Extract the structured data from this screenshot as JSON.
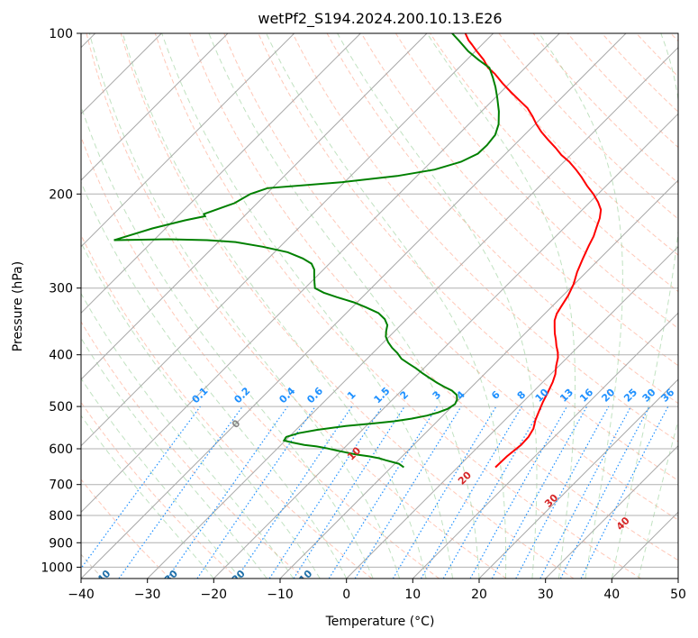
{
  "chart_data": {
    "type": "line",
    "title": "wetPf2_S194.2024.200.10.13.E26",
    "xlabel": "Temperature (°C)",
    "ylabel": "Pressure (hPa)",
    "xlim": [
      -40,
      50
    ],
    "ylim": [
      1050,
      100
    ],
    "y_scale": "log",
    "x_ticks": [
      -40,
      -30,
      -20,
      -10,
      0,
      10,
      20,
      30,
      40,
      50
    ],
    "y_ticks": [
      100,
      200,
      300,
      400,
      500,
      600,
      700,
      800,
      900,
      1000
    ],
    "grid": true,
    "skew": 45,
    "series": [
      {
        "role": "temperature",
        "color": "#ff0000",
        "points": [
          [
            5.7,
            650
          ],
          [
            5.8,
            620
          ],
          [
            6.2,
            590
          ],
          [
            6.1,
            570
          ],
          [
            5.6,
            550
          ],
          [
            4.6,
            530
          ],
          [
            3.8,
            510
          ],
          [
            3.0,
            490
          ],
          [
            2.3,
            470
          ],
          [
            1.5,
            450
          ],
          [
            0.7,
            435
          ],
          [
            -0.4,
            420
          ],
          [
            -1.4,
            405
          ],
          [
            -2.3,
            395
          ],
          [
            -3.4,
            385
          ],
          [
            -4.4,
            375
          ],
          [
            -5.5,
            365
          ],
          [
            -6.5,
            355
          ],
          [
            -7.5,
            345
          ],
          [
            -8.2,
            335
          ],
          [
            -8.6,
            325
          ],
          [
            -9.2,
            310
          ],
          [
            -10.1,
            295
          ],
          [
            -11.4,
            280
          ],
          [
            -12.5,
            265
          ],
          [
            -13.6,
            250
          ],
          [
            -14.3,
            240
          ],
          [
            -15.3,
            230
          ],
          [
            -16.1,
            222
          ],
          [
            -17.2,
            214
          ],
          [
            -18.8,
            207
          ],
          [
            -20.7,
            200
          ],
          [
            -22.9,
            193
          ],
          [
            -25.0,
            186
          ],
          [
            -27.0,
            180
          ],
          [
            -29.2,
            174
          ],
          [
            -31.4,
            169
          ],
          [
            -33.3,
            164
          ],
          [
            -35.8,
            158
          ],
          [
            -37.9,
            153
          ],
          [
            -39.8,
            148
          ],
          [
            -41.6,
            143
          ],
          [
            -43.6,
            138
          ],
          [
            -45.7,
            134
          ],
          [
            -48.4,
            129
          ],
          [
            -51.1,
            124
          ],
          [
            -53.7,
            119
          ],
          [
            -55.6,
            116
          ],
          [
            -57.5,
            112
          ],
          [
            -59.8,
            108
          ],
          [
            -61.5,
            105
          ],
          [
            -62.7,
            103
          ],
          [
            -64.2,
            100
          ]
        ]
      },
      {
        "role": "dewpoint",
        "color": "#008000",
        "points": [
          [
            -8.1,
            650
          ],
          [
            -9.4,
            640
          ],
          [
            -12.0,
            630
          ],
          [
            -13.2,
            625
          ],
          [
            -15.0,
            620
          ],
          [
            -17.2,
            615
          ],
          [
            -18.9,
            610
          ],
          [
            -20.6,
            605
          ],
          [
            -22.8,
            598
          ],
          [
            -24.4,
            594
          ],
          [
            -26.5,
            590
          ],
          [
            -28.6,
            584
          ],
          [
            -30.2,
            579
          ],
          [
            -30.4,
            570
          ],
          [
            -29.1,
            561
          ],
          [
            -26.8,
            553
          ],
          [
            -23.1,
            544
          ],
          [
            -19.3,
            538
          ],
          [
            -16.5,
            533
          ],
          [
            -14.3,
            527
          ],
          [
            -12.4,
            520
          ],
          [
            -11.2,
            513
          ],
          [
            -10.3,
            505
          ],
          [
            -9.9,
            495
          ],
          [
            -10.3,
            485
          ],
          [
            -11.0,
            476
          ],
          [
            -12.4,
            467
          ],
          [
            -14.2,
            459
          ],
          [
            -15.9,
            451
          ],
          [
            -17.7,
            442
          ],
          [
            -19.5,
            433
          ],
          [
            -21.2,
            424
          ],
          [
            -22.9,
            416
          ],
          [
            -24.8,
            407
          ],
          [
            -26.3,
            397
          ],
          [
            -27.9,
            388
          ],
          [
            -29.3,
            379
          ],
          [
            -30.5,
            370
          ],
          [
            -31.3,
            361
          ],
          [
            -32.0,
            352
          ],
          [
            -33.3,
            343
          ],
          [
            -35.2,
            334
          ],
          [
            -37.9,
            326
          ],
          [
            -40.5,
            319
          ],
          [
            -43.8,
            312
          ],
          [
            -46.5,
            306
          ],
          [
            -48.5,
            300
          ],
          [
            -49.4,
            293
          ],
          [
            -50.4,
            285
          ],
          [
            -51.4,
            277
          ],
          [
            -52.7,
            270
          ],
          [
            -54.8,
            264
          ],
          [
            -58.0,
            257
          ],
          [
            -62.6,
            251
          ],
          [
            -67.4,
            246
          ],
          [
            -72.0,
            244
          ],
          [
            -78.0,
            243
          ],
          [
            -86.0,
            244
          ],
          [
            -82.0,
            232
          ],
          [
            -78.3,
            224
          ],
          [
            -75.9,
            220
          ],
          [
            -76.4,
            218
          ],
          [
            -73.4,
            208
          ],
          [
            -72.4,
            200
          ],
          [
            -70.7,
            195
          ],
          [
            -60.3,
            190
          ],
          [
            -53.0,
            185
          ],
          [
            -48.3,
            180
          ],
          [
            -45.5,
            174
          ],
          [
            -44.2,
            168
          ],
          [
            -44.1,
            162
          ],
          [
            -44.4,
            155
          ],
          [
            -45.5,
            148
          ],
          [
            -47.4,
            140
          ],
          [
            -49.7,
            132
          ],
          [
            -51.6,
            126
          ],
          [
            -53.4,
            121
          ],
          [
            -55.4,
            116
          ],
          [
            -58.3,
            112
          ],
          [
            -61.1,
            108
          ],
          [
            -64.2,
            103
          ],
          [
            -66.2,
            100
          ]
        ]
      }
    ],
    "dry_adiabats": [
      -100,
      -90,
      -80,
      -70,
      -60,
      -50,
      -40,
      -30,
      -20,
      -10
    ],
    "dry_adiabat_color": "#1f6fa8",
    "moist_adiabats": [
      0,
      10,
      20,
      30,
      40
    ],
    "moist_adiabat_color": "#d62728",
    "moist_adiabat_zero_color": "#888888",
    "mixing_ratios": [
      "0.1",
      "0.2",
      "0.4",
      "0.6",
      "1",
      "1.5",
      "2",
      "3",
      "4",
      "6",
      "8",
      "10",
      "13",
      "16",
      "20",
      "25",
      "30",
      "36"
    ],
    "mixing_ratio_color": "#1e90ff"
  }
}
